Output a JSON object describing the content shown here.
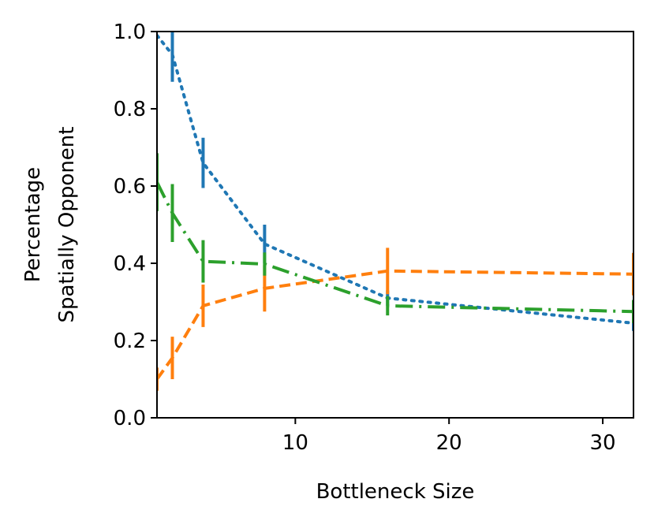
{
  "chart_data": {
    "type": "line",
    "xlabel": "Bottleneck Size",
    "ylabel_lines": [
      "Percentage",
      "Spatially Opponent"
    ],
    "xlim": [
      1,
      32
    ],
    "ylim": [
      0.0,
      1.0
    ],
    "xticks": [
      10,
      20,
      30
    ],
    "xtick_labels": [
      "10",
      "20",
      "30"
    ],
    "yticks": [
      0.0,
      0.2,
      0.4,
      0.6,
      0.8,
      1.0
    ],
    "ytick_labels": [
      "0.0",
      "0.2",
      "0.4",
      "0.6",
      "0.8",
      "1.0"
    ],
    "grid": false,
    "series": [
      {
        "color": "#1f77b4",
        "linestyle": "dotted",
        "points": [
          {
            "x": 1,
            "y": 0.99,
            "err": 0.0
          },
          {
            "x": 2,
            "y": 0.94,
            "err": 0.07
          },
          {
            "x": 4,
            "y": 0.66,
            "err": 0.065
          },
          {
            "x": 8,
            "y": 0.45,
            "err": 0.05
          },
          {
            "x": 16,
            "y": 0.31,
            "err": 0.02
          },
          {
            "x": 32,
            "y": 0.245,
            "err": 0.02
          }
        ]
      },
      {
        "color": "#ff7f0e",
        "linestyle": "dashed",
        "points": [
          {
            "x": 1,
            "y": 0.1,
            "err": 0.03
          },
          {
            "x": 2,
            "y": 0.155,
            "err": 0.055
          },
          {
            "x": 4,
            "y": 0.29,
            "err": 0.055
          },
          {
            "x": 8,
            "y": 0.335,
            "err": 0.06
          },
          {
            "x": 16,
            "y": 0.38,
            "err": 0.06
          },
          {
            "x": 32,
            "y": 0.372,
            "err": 0.055
          }
        ]
      },
      {
        "color": "#2ca02c",
        "linestyle": "dashdot",
        "points": [
          {
            "x": 1,
            "y": 0.61,
            "err": 0.075
          },
          {
            "x": 2,
            "y": 0.53,
            "err": 0.075
          },
          {
            "x": 4,
            "y": 0.405,
            "err": 0.055
          },
          {
            "x": 8,
            "y": 0.398,
            "err": 0.03
          },
          {
            "x": 16,
            "y": 0.29,
            "err": 0.025
          },
          {
            "x": 32,
            "y": 0.275,
            "err": 0.03
          }
        ]
      }
    ]
  }
}
